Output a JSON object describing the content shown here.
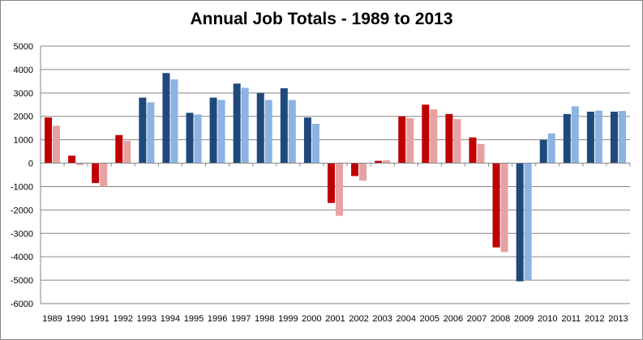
{
  "chart_data": {
    "type": "bar",
    "title": "Annual Job Totals - 1989 to 2013",
    "xlabel": "",
    "ylabel": "",
    "ylim": [
      -6000,
      5000
    ],
    "yticks": [
      "5000",
      "4000",
      "3000",
      "2000",
      "1000",
      "0",
      "-1000",
      "-2000",
      "-3000",
      "-4000",
      "-5000",
      "-6000"
    ],
    "grid": true,
    "legend": "none",
    "categories": [
      "1989",
      "1990",
      "1991",
      "1992",
      "1993",
      "1994",
      "1995",
      "1996",
      "1997",
      "1998",
      "1999",
      "2000",
      "2001",
      "2002",
      "2003",
      "2004",
      "2005",
      "2006",
      "2007",
      "2008",
      "2009",
      "2010",
      "2011",
      "2012",
      "2013"
    ],
    "series": [
      {
        "values": [
          1950,
          320,
          -850,
          1200,
          2800,
          3850,
          2150,
          2800,
          3400,
          3000,
          3200,
          1950,
          -1700,
          -550,
          100,
          2000,
          2500,
          2100,
          1100,
          -3600,
          -5050,
          1000,
          2100,
          2200,
          2200
        ]
      },
      {
        "values": [
          1600,
          -80,
          -1000,
          950,
          2600,
          3580,
          2080,
          2700,
          3220,
          2700,
          2700,
          1680,
          -2250,
          -750,
          120,
          1920,
          2300,
          1880,
          820,
          -3800,
          -5000,
          1270,
          2430,
          2250,
          2230
        ]
      }
    ],
    "party_colors": {
      "dem_primary": "#1F497D",
      "dem_secondary": "#8DB3E2",
      "rep_primary": "#C00000",
      "rep_secondary": "#E6A2A2"
    },
    "bar_party": [
      "r",
      "r",
      "r",
      "r",
      "d",
      "d",
      "d",
      "d",
      "d",
      "d",
      "d",
      "d",
      "r",
      "r",
      "r",
      "r",
      "r",
      "r",
      "r",
      "r",
      "d",
      "d",
      "d",
      "d",
      "d"
    ]
  }
}
